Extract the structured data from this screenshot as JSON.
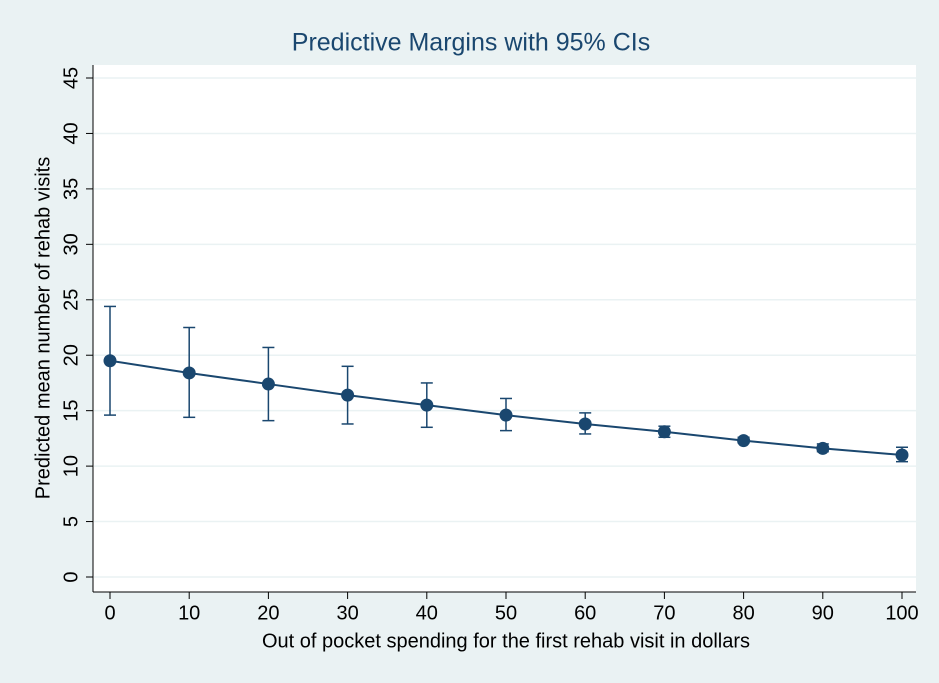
{
  "chart_data": {
    "type": "line_ci",
    "title": "Predictive Margins with 95% CIs",
    "xlabel": "Out of pocket spending for the first rehab visit in dollars",
    "ylabel": "Predicted mean number of rehab visits",
    "x": [
      0,
      10,
      20,
      30,
      40,
      50,
      60,
      70,
      80,
      90,
      100
    ],
    "values": [
      19.5,
      18.4,
      17.4,
      16.4,
      15.5,
      14.6,
      13.8,
      13.1,
      12.3,
      11.6,
      11.0
    ],
    "lower": [
      14.6,
      14.4,
      14.1,
      13.8,
      13.5,
      13.2,
      12.9,
      12.6,
      12.1,
      11.3,
      10.4
    ],
    "upper": [
      24.4,
      22.5,
      20.7,
      19.0,
      17.5,
      16.1,
      14.8,
      13.6,
      12.6,
      12.0,
      11.7
    ],
    "color": "#1a476f",
    "xlim": [
      0,
      100
    ],
    "xticks": [
      0,
      10,
      20,
      30,
      40,
      50,
      60,
      70,
      80,
      90,
      100
    ],
    "ylim": [
      0,
      45
    ],
    "yticks": [
      0,
      5,
      10,
      15,
      20,
      25,
      30,
      35,
      40,
      45
    ],
    "grid": true
  }
}
